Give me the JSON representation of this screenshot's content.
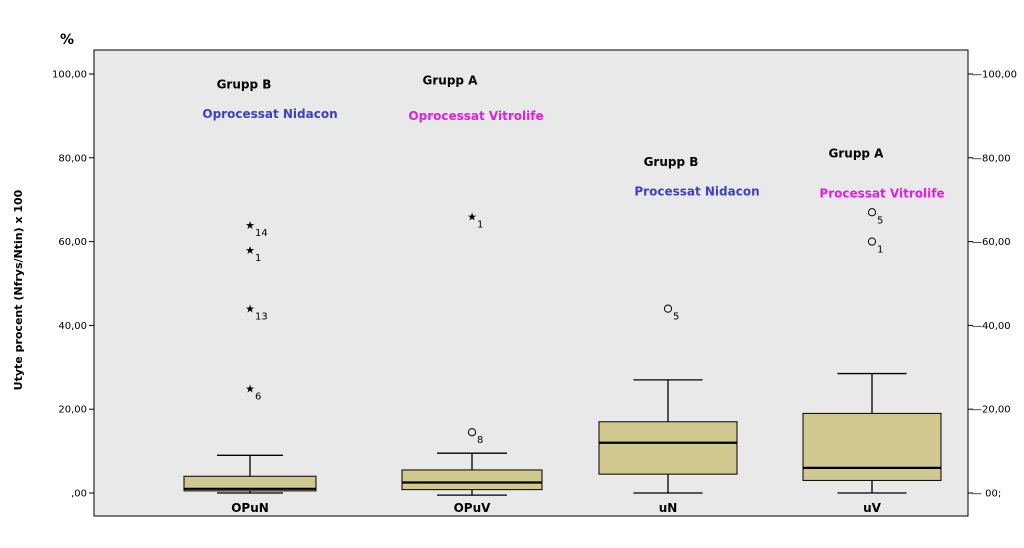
{
  "chart_data": {
    "type": "box",
    "unit_label": "%",
    "ylabel": "Utyte procent (Nfrys/Ntin) x 100",
    "ylim": [
      0,
      106
    ],
    "yticks_left": [
      {
        "value": 0,
        "label": ",00"
      },
      {
        "value": 20,
        "label": "20,00"
      },
      {
        "value": 40,
        "label": "40,00"
      },
      {
        "value": 60,
        "label": "60,00"
      },
      {
        "value": 80,
        "label": "80,00"
      },
      {
        "value": 100,
        "label": "100,00"
      }
    ],
    "yticks_right": [
      {
        "value": 0,
        "label": "00;"
      },
      {
        "value": 20,
        "label": "20,00"
      },
      {
        "value": 40,
        "label": "40,00"
      },
      {
        "value": 60,
        "label": "60,00"
      },
      {
        "value": 80,
        "label": "80,00"
      },
      {
        "value": 100,
        "label": "100,00"
      }
    ],
    "grid": false,
    "box_color": "#cfc990",
    "categories": [
      "OPuN",
      "OPuV",
      "uN",
      "uV"
    ],
    "boxes": [
      {
        "category": "OPuN",
        "whisker_low": 0,
        "q1": 0.5,
        "median": 1,
        "q3": 4,
        "whisker_high": 9,
        "outliers": [
          {
            "value": 64,
            "label": "14",
            "marker": "star"
          },
          {
            "value": 58,
            "label": "1",
            "marker": "star"
          },
          {
            "value": 44,
            "label": "13",
            "marker": "star"
          },
          {
            "value": 25,
            "label": "6",
            "marker": "star"
          }
        ]
      },
      {
        "category": "OPuV",
        "whisker_low": -0.5,
        "q1": 0.8,
        "median": 2.5,
        "q3": 5.5,
        "whisker_high": 9.5,
        "outliers": [
          {
            "value": 66,
            "label": "1",
            "marker": "star"
          },
          {
            "value": 14.5,
            "label": "8",
            "marker": "circle"
          }
        ]
      },
      {
        "category": "uN",
        "whisker_low": 0,
        "q1": 4.5,
        "median": 12,
        "q3": 17,
        "whisker_high": 27,
        "outliers": [
          {
            "value": 44,
            "label": "5",
            "marker": "circle"
          }
        ]
      },
      {
        "category": "uV",
        "whisker_low": 0,
        "q1": 3,
        "median": 6,
        "q3": 19,
        "whisker_high": 28.5,
        "outliers": [
          {
            "value": 67,
            "label": "5",
            "marker": "circle"
          },
          {
            "value": 60,
            "label": "1",
            "marker": "circle"
          }
        ]
      }
    ],
    "annotations": [
      {
        "category": "OPuN",
        "group": "Grupp B",
        "label": "Oprocessat Nidacon",
        "color": "#3f3fbf",
        "group_value": 97.5,
        "label_value": 90.5
      },
      {
        "category": "OPuV",
        "group": "Grupp A",
        "label": "Oprocessat Vitrolife",
        "color": "#e020e0",
        "group_value": 98.5,
        "label_value": 90
      },
      {
        "category": "uN",
        "group": "Grupp B",
        "label": "Processat Nidacon",
        "color": "#3f3fbf",
        "group_value": 79,
        "label_value": 72
      },
      {
        "category": "uV",
        "group": "Grupp A",
        "label": "Processat Vitrolife",
        "color": "#e020e0",
        "group_value": 81,
        "label_value": 71.5
      }
    ]
  }
}
